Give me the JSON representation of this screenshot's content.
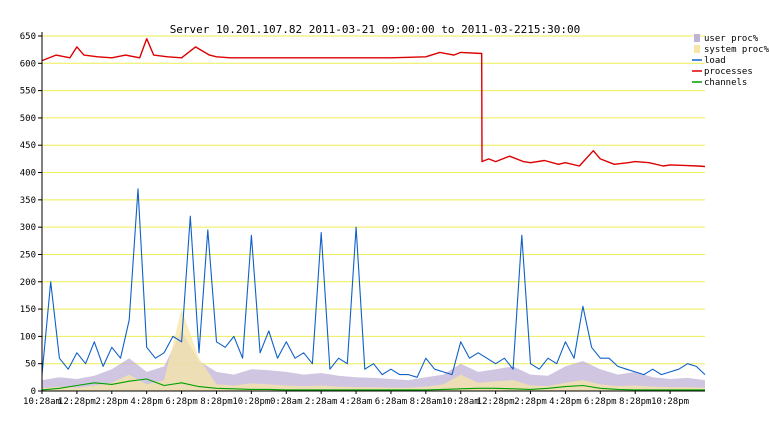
{
  "chart_data": {
    "type": "line",
    "title": "Server 10.201.107.82   2011-03-21 09:00:00 to 2011-03-2215:30:00",
    "xlabel": "",
    "ylabel": "",
    "ylim": [
      0,
      650
    ],
    "yticks": [
      0,
      50,
      100,
      150,
      200,
      250,
      300,
      350,
      400,
      450,
      500,
      550,
      600,
      650
    ],
    "xtick_labels": [
      "10:28am",
      "12:28pm",
      "2:28pm",
      "4:28pm",
      "6:28pm",
      "8:28pm",
      "10:28pm",
      "0:28am",
      "2:28am",
      "4:28am",
      "6:28am",
      "8:28am",
      "10:28am",
      "12:28pm",
      "2:28pm",
      "4:28pm",
      "6:28pm",
      "8:28pm",
      "10:28pm"
    ],
    "grid": true,
    "legend_position": "top-right",
    "colors": {
      "user_proc": "#c0b3d8",
      "system_proc": "#f7e6a6",
      "load": "#1060c8",
      "processes": "#dd0000",
      "channels": "#00a000",
      "grid": "#eeee55",
      "axis": "#000000"
    },
    "series": [
      {
        "name": "user proc%",
        "kind": "area",
        "x": [
          0,
          0.5,
          1,
          1.5,
          2,
          2.5,
          3,
          3.5,
          4,
          4.5,
          5,
          5.5,
          6,
          6.5,
          7,
          7.5,
          8,
          8.5,
          9,
          9.5,
          10,
          10.5,
          11,
          11.5,
          12,
          12.5,
          13,
          13.5,
          14,
          14.5,
          15,
          15.5,
          16,
          16.5,
          17,
          17.5,
          18,
          18.5,
          19
        ],
        "values": [
          20,
          25,
          22,
          28,
          40,
          60,
          35,
          45,
          110,
          55,
          35,
          30,
          40,
          38,
          35,
          30,
          33,
          28,
          25,
          24,
          22,
          20,
          25,
          30,
          50,
          35,
          40,
          45,
          30,
          28,
          45,
          55,
          40,
          30,
          35,
          25,
          22,
          24,
          20
        ]
      },
      {
        "name": "system proc%",
        "kind": "area",
        "x": [
          0,
          0.5,
          1,
          1.5,
          2,
          2.5,
          3,
          3.5,
          4,
          4.5,
          5,
          5.5,
          6,
          6.5,
          7,
          7.5,
          8,
          8.5,
          9,
          9.5,
          10,
          10.5,
          11,
          11.5,
          12,
          12.5,
          13,
          13.5,
          14,
          14.5,
          15,
          15.5,
          16,
          16.5,
          17,
          17.5,
          18,
          18.5,
          19
        ],
        "values": [
          5,
          8,
          6,
          10,
          15,
          30,
          12,
          20,
          150,
          60,
          12,
          10,
          14,
          12,
          10,
          9,
          10,
          8,
          7,
          7,
          6,
          6,
          8,
          12,
          30,
          15,
          18,
          20,
          10,
          9,
          15,
          20,
          12,
          9,
          10,
          8,
          7,
          7,
          6
        ]
      },
      {
        "name": "load",
        "kind": "line",
        "x": [
          0,
          0.25,
          0.5,
          0.75,
          1,
          1.25,
          1.5,
          1.75,
          2,
          2.25,
          2.5,
          2.75,
          3,
          3.25,
          3.5,
          3.75,
          4,
          4.25,
          4.5,
          4.75,
          5,
          5.25,
          5.5,
          5.75,
          6,
          6.25,
          6.5,
          6.75,
          7,
          7.25,
          7.5,
          7.75,
          8,
          8.25,
          8.5,
          8.75,
          9,
          9.25,
          9.5,
          9.75,
          10,
          10.25,
          10.5,
          10.75,
          11,
          11.25,
          11.5,
          11.75,
          12,
          12.25,
          12.5,
          12.75,
          13,
          13.25,
          13.5,
          13.75,
          14,
          14.25,
          14.5,
          14.75,
          15,
          15.25,
          15.5,
          15.75,
          16,
          16.25,
          16.5,
          16.75,
          17,
          17.25,
          17.5,
          17.75,
          18,
          18.25,
          18.5,
          18.75,
          19
        ],
        "values": [
          30,
          200,
          60,
          40,
          70,
          50,
          90,
          45,
          80,
          60,
          130,
          370,
          80,
          60,
          70,
          100,
          90,
          320,
          70,
          295,
          90,
          80,
          100,
          60,
          285,
          70,
          110,
          60,
          90,
          60,
          70,
          50,
          290,
          40,
          60,
          50,
          300,
          40,
          50,
          30,
          40,
          30,
          30,
          25,
          60,
          40,
          35,
          30,
          90,
          60,
          70,
          60,
          50,
          60,
          40,
          285,
          50,
          40,
          60,
          50,
          90,
          60,
          155,
          80,
          60,
          60,
          45,
          40,
          35,
          30,
          40,
          30,
          35,
          40,
          50,
          45,
          30
        ]
      },
      {
        "name": "processes",
        "kind": "line",
        "x": [
          0,
          0.4,
          0.8,
          1,
          1.2,
          1.6,
          2,
          2.4,
          2.8,
          3,
          3.2,
          3.6,
          4,
          4.4,
          4.8,
          5,
          5.4,
          6,
          7,
          8,
          9,
          10,
          11,
          11.4,
          11.8,
          12,
          12.6,
          12.61,
          12.8,
          13,
          13.4,
          13.8,
          14,
          14.4,
          14.8,
          15,
          15.4,
          15.8,
          16,
          16.4,
          16.8,
          17,
          17.4,
          17.8,
          18,
          18.4,
          18.8,
          19
        ],
        "values": [
          605,
          615,
          610,
          630,
          615,
          612,
          610,
          615,
          610,
          645,
          615,
          612,
          610,
          630,
          615,
          612,
          610,
          610,
          610,
          610,
          610,
          610,
          612,
          620,
          615,
          620,
          618,
          420,
          425,
          420,
          430,
          420,
          418,
          422,
          415,
          418,
          412,
          440,
          425,
          415,
          418,
          420,
          418,
          412,
          414,
          413,
          412,
          411
        ]
      },
      {
        "name": "channels",
        "kind": "line",
        "x": [
          0,
          0.5,
          1,
          1.5,
          2,
          2.5,
          3,
          3.5,
          4,
          4.5,
          5,
          5.5,
          6,
          6.5,
          7,
          7.5,
          8,
          8.5,
          9,
          9.5,
          10,
          10.5,
          11,
          11.5,
          12,
          12.5,
          13,
          13.5,
          14,
          14.5,
          15,
          15.5,
          16,
          16.5,
          17,
          17.5,
          18,
          18.5,
          19
        ],
        "values": [
          2,
          5,
          10,
          15,
          12,
          18,
          22,
          10,
          15,
          8,
          5,
          4,
          3,
          3,
          2,
          2,
          2,
          2,
          2,
          2,
          2,
          2,
          2,
          3,
          4,
          5,
          5,
          4,
          3,
          5,
          8,
          10,
          5,
          3,
          2,
          2,
          2,
          2,
          2
        ]
      }
    ]
  }
}
